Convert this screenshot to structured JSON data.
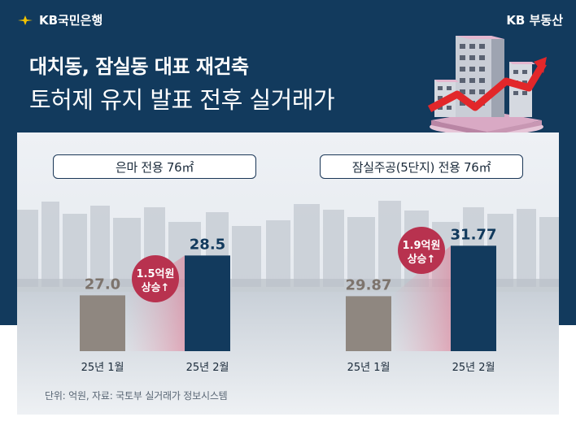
{
  "brand_left": "KB국민은행",
  "brand_right": "KB 부동산",
  "title_line1": "대치동, 잠실동 대표 재건축",
  "title_line2": "토허제 유지 발표 전후 실거래가",
  "source": "단위: 억원, 자료: 국토부 실거래가 정보시스템",
  "colors": {
    "header_bg": "#123a5d",
    "bar_before": "#8f8780",
    "bar_after": "#123a5d",
    "badge": "#b8324f"
  },
  "chart_data": [
    {
      "type": "bar",
      "title": "은마 전용 76㎡",
      "unit": "억원",
      "categories": [
        "25년 1월",
        "25년 2월"
      ],
      "values": [
        27.0,
        28.5
      ],
      "value_labels": [
        "27.0",
        "28.5"
      ],
      "annotation_line1": "1.5억원",
      "annotation_line2": "상승↑",
      "ylim": [
        24.9,
        29.0
      ]
    },
    {
      "type": "bar",
      "title": "잠실주공(5단지) 전용 76㎡",
      "unit": "억원",
      "categories": [
        "25년 1월",
        "25년 2월"
      ],
      "values": [
        29.87,
        31.77
      ],
      "value_labels": [
        "29.87",
        "31.77"
      ],
      "annotation_line1": "1.9억원",
      "annotation_line2": "상승↑",
      "ylim": [
        27.8,
        32.3
      ]
    }
  ]
}
